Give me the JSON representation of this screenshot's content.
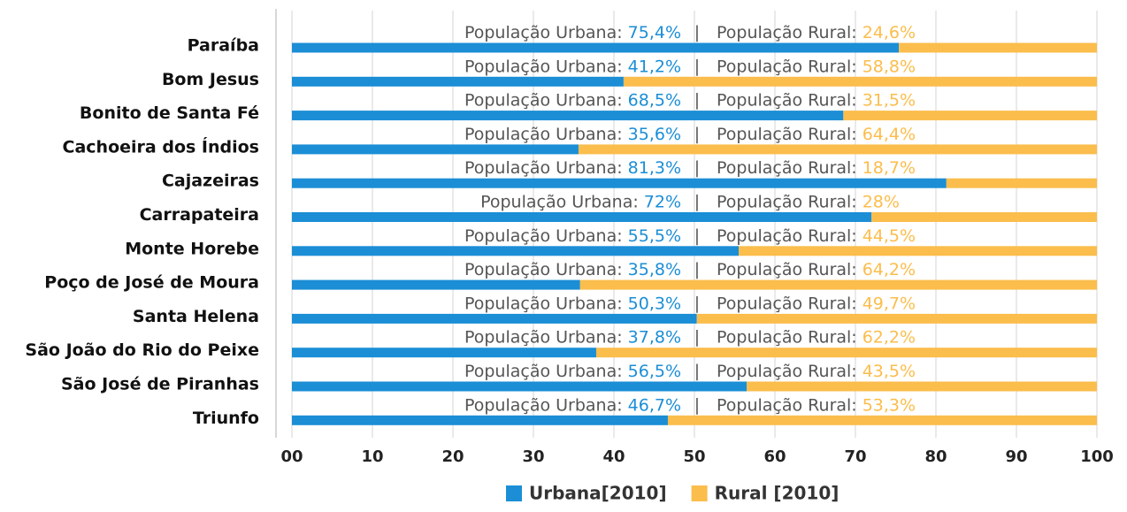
{
  "chart_data": {
    "type": "stacked_barh",
    "categories": [
      "Paraíba",
      "Bom Jesus",
      "Bonito de Santa Fé",
      "Cachoeira dos Índios",
      "Cajazeiras",
      "Carrapateira",
      "Monte Horebe",
      "Poço de José de Moura",
      "Santa Helena",
      "São João do Rio do Peixe",
      "São José de Piranhas",
      "Triunfo"
    ],
    "series": [
      {
        "name": "Urbana[2010]",
        "color": "#1b8ed6",
        "label_prefix": "População Urbana:",
        "values": [
          75.4,
          41.2,
          68.5,
          35.6,
          81.3,
          72,
          55.5,
          35.8,
          50.3,
          37.8,
          56.5,
          46.7
        ],
        "value_labels": [
          "75,4%",
          "41,2%",
          "68,5%",
          "35,6%",
          "81,3%",
          "72%",
          "55,5%",
          "35,8%",
          "50,3%",
          "37,8%",
          "56,5%",
          "46,7%"
        ]
      },
      {
        "name": "Rural [2010]",
        "color": "#fbbd4c",
        "label_prefix": "População Rural:",
        "values": [
          24.6,
          58.8,
          31.5,
          64.4,
          18.7,
          28,
          44.5,
          64.2,
          49.7,
          62.2,
          43.5,
          53.3
        ],
        "value_labels": [
          "24,6%",
          "58,8%",
          "31,5%",
          "64,4%",
          "18,7%",
          "28%",
          "44,5%",
          "64,2%",
          "49,7%",
          "62,2%",
          "43,5%",
          "53,3%"
        ]
      }
    ],
    "separator": "|",
    "xlim": [
      0,
      100
    ],
    "xticks": [
      {
        "value": 0,
        "label": "00"
      },
      10,
      20,
      30,
      40,
      50,
      60,
      70,
      80,
      90,
      100
    ],
    "grid": true,
    "legend": "bottom"
  }
}
